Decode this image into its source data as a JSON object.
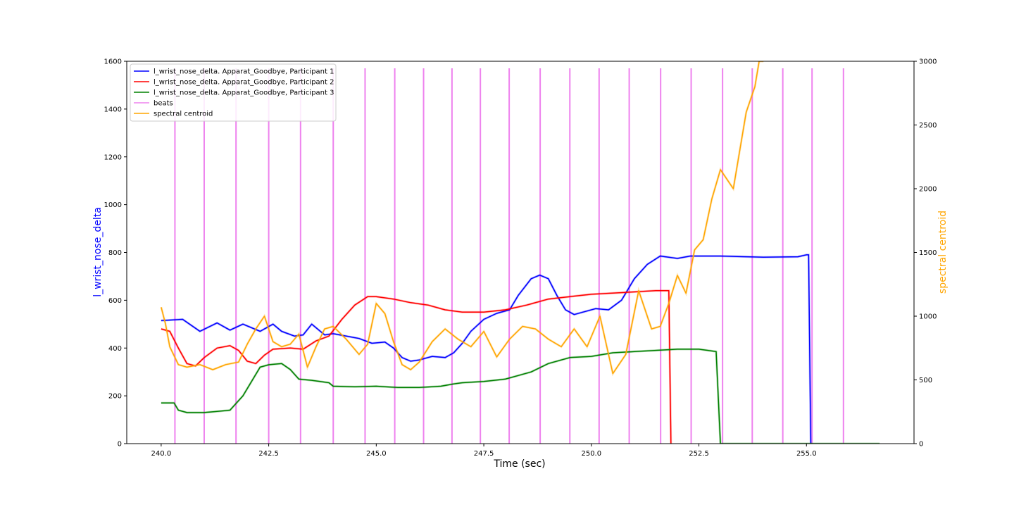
{
  "chart_data": {
    "type": "line",
    "xlabel": "Time (sec)",
    "ylabel_left": "l_wrist_nose_delta",
    "ylabel_right": "spectral centroid",
    "xlim": [
      239.2,
      257.5
    ],
    "ylim_left": [
      0,
      1600
    ],
    "ylim_right": [
      0,
      3000
    ],
    "x_ticks": [
      240.0,
      242.5,
      245.0,
      247.5,
      250.0,
      252.5,
      255.0
    ],
    "x_tick_labels": [
      "240.0",
      "242.5",
      "245.0",
      "247.5",
      "250.0",
      "252.5",
      "255.0"
    ],
    "y_left_ticks": [
      0,
      200,
      400,
      600,
      800,
      1000,
      1200,
      1400,
      1600
    ],
    "y_left_tick_labels": [
      "0",
      "200",
      "400",
      "600",
      "800",
      "1000",
      "1200",
      "1400",
      "1600"
    ],
    "y_right_ticks": [
      0,
      500,
      1000,
      1500,
      2000,
      2500,
      3000
    ],
    "y_right_tick_labels": [
      "0",
      "500",
      "1000",
      "1500",
      "2000",
      "2500",
      "3000"
    ],
    "grid": false,
    "legend_position": "top-left",
    "legend": [
      {
        "label": "l_wrist_nose_delta. Apparat_Goodbye, Participant 1",
        "color": "#0000ff"
      },
      {
        "label": "l_wrist_nose_delta. Apparat_Goodbye, Participant 2",
        "color": "#ff0000"
      },
      {
        "label": "l_wrist_nose_delta. Apparat_Goodbye, Participant 3",
        "color": "#008000"
      },
      {
        "label": "beats",
        "color": "#ee82ee"
      },
      {
        "label": "spectral centroid",
        "color": "#ffa500"
      }
    ],
    "series": [
      {
        "name": "l_wrist_nose_delta. Apparat_Goodbye, Participant 1",
        "axis": "left",
        "color": "#0000ff",
        "x": [
          240.0,
          240.5,
          240.9,
          241.3,
          241.6,
          241.9,
          242.3,
          242.6,
          242.8,
          243.1,
          243.3,
          243.5,
          243.8,
          244.0,
          244.3,
          244.6,
          244.9,
          245.2,
          245.4,
          245.6,
          245.8,
          246.0,
          246.3,
          246.6,
          246.8,
          247.0,
          247.2,
          247.5,
          247.8,
          248.1,
          248.3,
          248.6,
          248.8,
          249.0,
          249.2,
          249.4,
          249.6,
          249.8,
          250.1,
          250.4,
          250.7,
          251.0,
          251.3,
          251.6,
          252.0,
          252.3,
          253.0,
          254.0,
          254.8,
          255.0,
          255.05,
          255.1
        ],
        "y": [
          515,
          520,
          470,
          505,
          475,
          500,
          470,
          500,
          470,
          450,
          455,
          500,
          455,
          460,
          450,
          440,
          420,
          425,
          400,
          360,
          345,
          350,
          365,
          360,
          380,
          420,
          470,
          520,
          545,
          560,
          620,
          690,
          705,
          690,
          620,
          560,
          540,
          550,
          565,
          560,
          600,
          690,
          750,
          785,
          775,
          785,
          785,
          780,
          782,
          790,
          790,
          0
        ]
      },
      {
        "name": "l_wrist_nose_delta. Apparat_Goodbye, Participant 2",
        "axis": "left",
        "color": "#ff0000",
        "x": [
          240.0,
          240.2,
          240.4,
          240.6,
          240.8,
          241.0,
          241.3,
          241.6,
          241.8,
          242.0,
          242.2,
          242.4,
          242.6,
          243.0,
          243.3,
          243.6,
          243.9,
          244.2,
          244.5,
          244.8,
          245.0,
          245.4,
          245.8,
          246.2,
          246.6,
          247.0,
          247.5,
          248.0,
          248.5,
          249.0,
          249.5,
          250.0,
          250.5,
          251.0,
          251.5,
          251.8,
          251.85
        ],
        "y": [
          480,
          470,
          400,
          335,
          325,
          360,
          400,
          410,
          390,
          345,
          335,
          370,
          395,
          400,
          395,
          430,
          450,
          520,
          580,
          615,
          615,
          605,
          590,
          580,
          560,
          550,
          550,
          560,
          580,
          605,
          615,
          625,
          630,
          635,
          640,
          640,
          0
        ]
      },
      {
        "name": "l_wrist_nose_delta. Apparat_Goodbye, Participant 3",
        "axis": "left",
        "color": "#008000",
        "x": [
          240.0,
          240.3,
          240.4,
          240.6,
          241.0,
          241.3,
          241.6,
          241.9,
          242.1,
          242.3,
          242.5,
          242.8,
          243.0,
          243.2,
          243.5,
          243.9,
          244.0,
          244.5,
          245.0,
          245.5,
          246.0,
          246.5,
          246.8,
          247.0,
          247.5,
          248.0,
          248.3,
          248.6,
          249.0,
          249.5,
          250.0,
          250.5,
          251.0,
          251.5,
          252.0,
          252.5,
          252.9,
          253.0,
          256.7
        ],
        "y": [
          170,
          170,
          140,
          130,
          130,
          135,
          140,
          200,
          260,
          320,
          330,
          335,
          310,
          270,
          265,
          255,
          240,
          238,
          240,
          235,
          235,
          240,
          250,
          255,
          260,
          270,
          285,
          300,
          335,
          360,
          365,
          380,
          385,
          390,
          395,
          395,
          385,
          0,
          0
        ]
      },
      {
        "name": "spectral centroid",
        "axis": "right",
        "color": "#ffa500",
        "x": [
          240.0,
          240.1,
          240.2,
          240.4,
          240.6,
          240.9,
          241.2,
          241.5,
          241.8,
          242.0,
          242.2,
          242.4,
          242.6,
          242.8,
          243.0,
          243.2,
          243.4,
          243.6,
          243.8,
          244.0,
          244.3,
          244.6,
          244.8,
          245.0,
          245.2,
          245.4,
          245.6,
          245.8,
          246.0,
          246.3,
          246.6,
          246.9,
          247.2,
          247.5,
          247.8,
          248.1,
          248.4,
          248.7,
          249.0,
          249.3,
          249.6,
          249.9,
          250.2,
          250.5,
          250.8,
          251.1,
          251.4,
          251.6,
          251.8,
          252.0,
          252.2,
          252.4,
          252.6,
          252.8,
          253.0,
          253.3,
          253.6,
          253.8,
          253.9,
          254.0
        ],
        "y": [
          1070,
          940,
          760,
          620,
          600,
          620,
          580,
          620,
          640,
          780,
          900,
          1000,
          800,
          760,
          780,
          860,
          600,
          760,
          900,
          920,
          820,
          700,
          780,
          1100,
          1020,
          800,
          620,
          580,
          640,
          800,
          900,
          820,
          760,
          880,
          680,
          820,
          920,
          900,
          820,
          760,
          900,
          760,
          1000,
          550,
          700,
          1200,
          900,
          920,
          1100,
          1320,
          1180,
          1520,
          1600,
          1920,
          2150,
          2000,
          2600,
          2800,
          3000,
          3000
        ]
      }
    ],
    "beats_x": [
      240.32,
      241.0,
      241.74,
      242.5,
      243.24,
      244.0,
      244.74,
      245.43,
      246.1,
      246.76,
      247.42,
      248.09,
      248.81,
      249.5,
      250.18,
      250.88,
      251.61,
      252.32,
      253.05,
      253.74,
      254.45,
      255.13,
      255.86
    ],
    "beats_color": "#ee82ee"
  }
}
